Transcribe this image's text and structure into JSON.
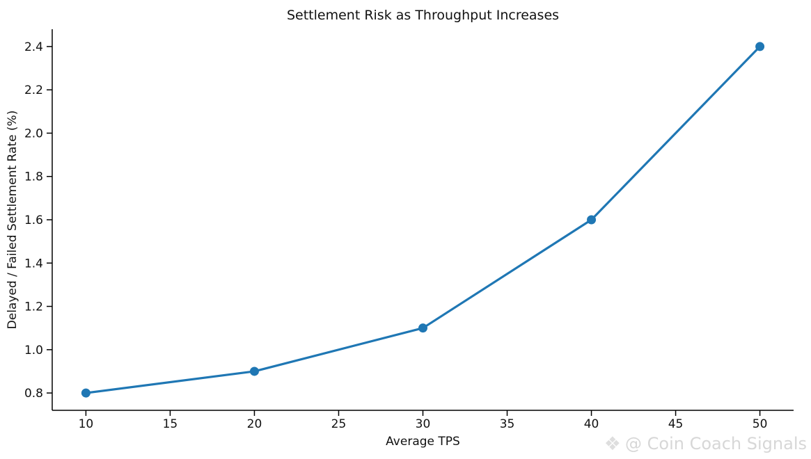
{
  "chart_data": {
    "type": "line",
    "title": "Settlement Risk as Throughput Increases",
    "xlabel": "Average TPS",
    "ylabel": "Delayed / Failed Settlement Rate (%)",
    "x": [
      10,
      20,
      30,
      40,
      50
    ],
    "values": [
      0.8,
      0.9,
      1.1,
      1.6,
      2.4
    ],
    "series_name": "Delayed / Failed Settlement Rate (%)",
    "xticks": [
      10,
      15,
      20,
      25,
      30,
      35,
      40,
      45,
      50
    ],
    "xtick_labels": [
      "10",
      "15",
      "20",
      "25",
      "30",
      "35",
      "40",
      "45",
      "50"
    ],
    "yticks": [
      0.8,
      1.0,
      1.2,
      1.4,
      1.6,
      1.8,
      2.0,
      2.2,
      2.4
    ],
    "ytick_labels": [
      "0.8",
      "1.0",
      "1.2",
      "1.4",
      "1.6",
      "1.8",
      "2.0",
      "2.2",
      "2.4"
    ],
    "xlim": [
      8,
      52
    ],
    "ylim": [
      0.72,
      2.48
    ],
    "grid": false,
    "legend": "none",
    "line_color": "#1f77b4",
    "marker": "circle",
    "marker_size": 6.5,
    "line_width": 3.2,
    "spine_color": "#000000"
  },
  "watermark": {
    "icon": "four-diamonds-icon",
    "icon_glyph": "❖",
    "text": "@ Coin Coach Signals",
    "color": "#d7d7d7"
  }
}
